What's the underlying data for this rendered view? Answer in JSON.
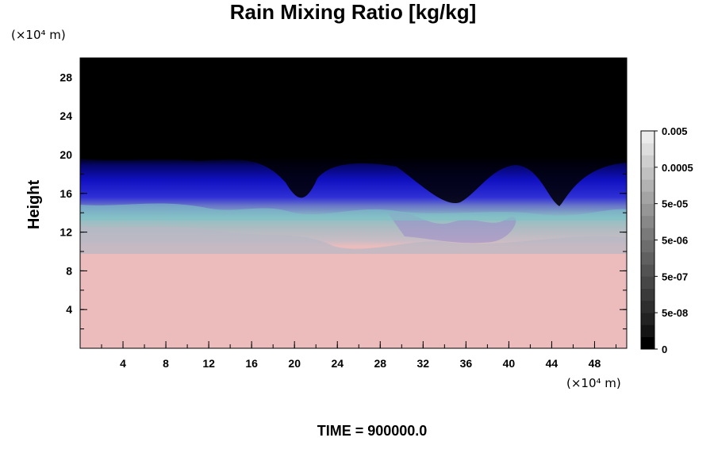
{
  "chart_data": {
    "type": "heatmap",
    "title": "Rain Mixing Ratio [kg/kg]",
    "ylabel": "Height",
    "x_unit": "(×10⁴ m)",
    "y_unit": "(×10⁴ m)",
    "xlim": [
      0,
      51
    ],
    "ylim": [
      0,
      30
    ],
    "x_ticks": [
      4,
      8,
      12,
      16,
      20,
      24,
      28,
      32,
      36,
      40,
      44,
      48
    ],
    "y_ticks": [
      4,
      8,
      12,
      16,
      20,
      24,
      28
    ],
    "footer": "TIME = 900000.0",
    "colorbar": {
      "labels": [
        "0",
        "5e-08",
        "5e-07",
        "5e-06",
        "5e-05",
        "0.0005",
        "0.005"
      ],
      "colors": [
        "#000000",
        "#141414",
        "#222222",
        "#2e2e2e",
        "#3a3a3a",
        "#474747",
        "#535353",
        "#606060",
        "#6d6d6d",
        "#7a7a7a",
        "#888888",
        "#969696",
        "#a4a4a4",
        "#b2b2b2",
        "#c0c0c0",
        "#cecece",
        "#dddddd",
        "#ebebeb"
      ]
    },
    "field": {
      "description_bands": [
        {
          "from": 0,
          "to": 11,
          "color": "#ecbcbc"
        },
        {
          "from": 11,
          "to": 12.5,
          "color": "#bdbcc4"
        },
        {
          "from": 12.5,
          "to": 15,
          "color": "#8fb8c0"
        },
        {
          "from": 15,
          "to": 17,
          "color": "#3c3cd0"
        },
        {
          "from": 17,
          "to": 19.5,
          "color": "#0a0ab4"
        },
        {
          "from": 19.5,
          "to": 30,
          "color": "#000000"
        }
      ]
    }
  }
}
